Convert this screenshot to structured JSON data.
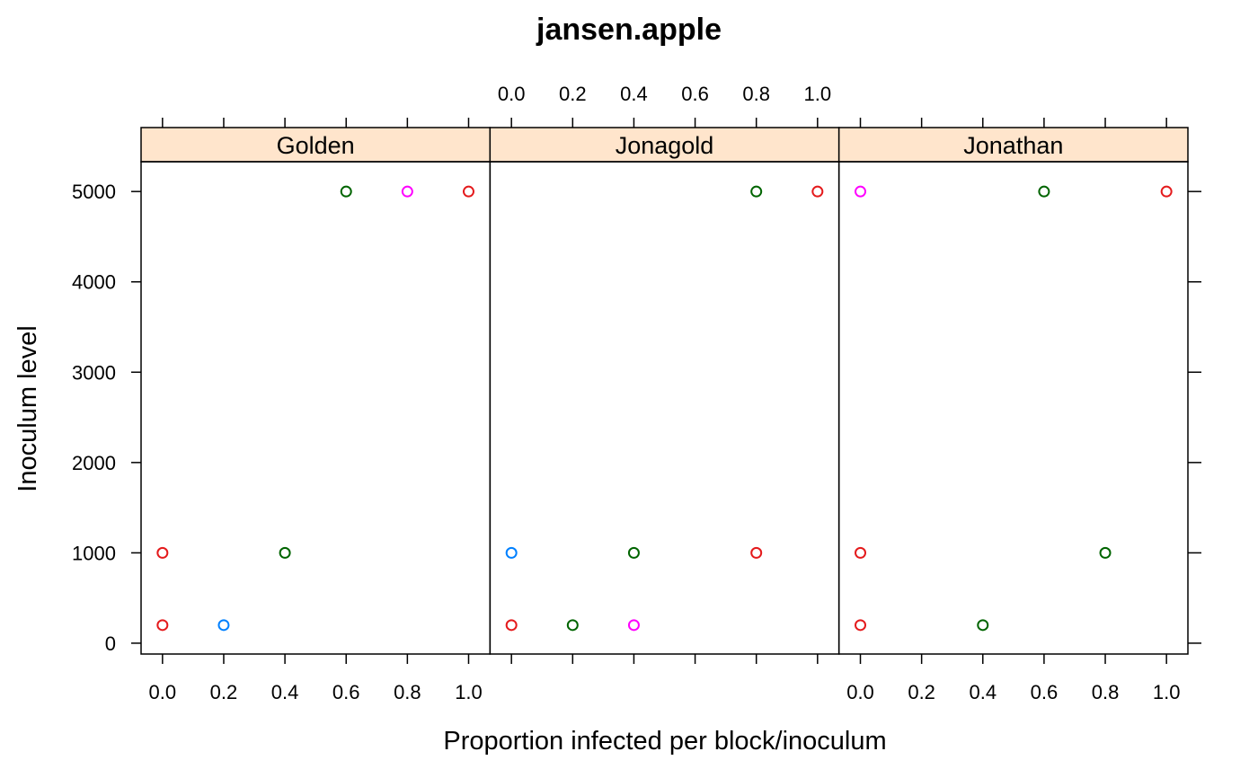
{
  "chart_data": {
    "type": "scatter",
    "title": "jansen.apple",
    "xlabel": "Proportion infected per block/inoculum",
    "ylabel": "Inoculum level",
    "xlim": [
      -0.07,
      1.07
    ],
    "ylim": [
      -120,
      5330
    ],
    "x_ticks": [
      "0.0",
      "0.2",
      "0.4",
      "0.6",
      "0.8",
      "1.0"
    ],
    "y_ticks": [
      "0",
      "1000",
      "2000",
      "3000",
      "4000",
      "5000"
    ],
    "grid": false,
    "legend": "none",
    "strip_color": "#FFE5CC",
    "point_colors": {
      "red": "#E41A1C",
      "blue": "#0080FF",
      "green": "#006400",
      "magenta": "#FF00FF"
    },
    "panels": [
      {
        "name": "Golden",
        "points": [
          {
            "x": 0.0,
            "y": 200,
            "color": "red"
          },
          {
            "x": 0.0,
            "y": 1000,
            "color": "red"
          },
          {
            "x": 0.2,
            "y": 200,
            "color": "blue"
          },
          {
            "x": 0.4,
            "y": 1000,
            "color": "green"
          },
          {
            "x": 0.6,
            "y": 5000,
            "color": "green"
          },
          {
            "x": 0.8,
            "y": 5000,
            "color": "magenta"
          },
          {
            "x": 1.0,
            "y": 5000,
            "color": "red"
          }
        ]
      },
      {
        "name": "Jonagold",
        "points": [
          {
            "x": 0.0,
            "y": 200,
            "color": "red"
          },
          {
            "x": 0.0,
            "y": 1000,
            "color": "blue"
          },
          {
            "x": 0.2,
            "y": 200,
            "color": "green"
          },
          {
            "x": 0.4,
            "y": 200,
            "color": "magenta"
          },
          {
            "x": 0.4,
            "y": 1000,
            "color": "green"
          },
          {
            "x": 0.8,
            "y": 1000,
            "color": "red"
          },
          {
            "x": 0.8,
            "y": 5000,
            "color": "green"
          },
          {
            "x": 1.0,
            "y": 5000,
            "color": "red"
          }
        ]
      },
      {
        "name": "Jonathan",
        "points": [
          {
            "x": 0.0,
            "y": 200,
            "color": "red"
          },
          {
            "x": 0.0,
            "y": 1000,
            "color": "red"
          },
          {
            "x": 0.0,
            "y": 5000,
            "color": "magenta"
          },
          {
            "x": 0.4,
            "y": 200,
            "color": "green"
          },
          {
            "x": 0.6,
            "y": 5000,
            "color": "green"
          },
          {
            "x": 0.8,
            "y": 1000,
            "color": "green"
          },
          {
            "x": 1.0,
            "y": 5000,
            "color": "red"
          }
        ]
      }
    ]
  }
}
